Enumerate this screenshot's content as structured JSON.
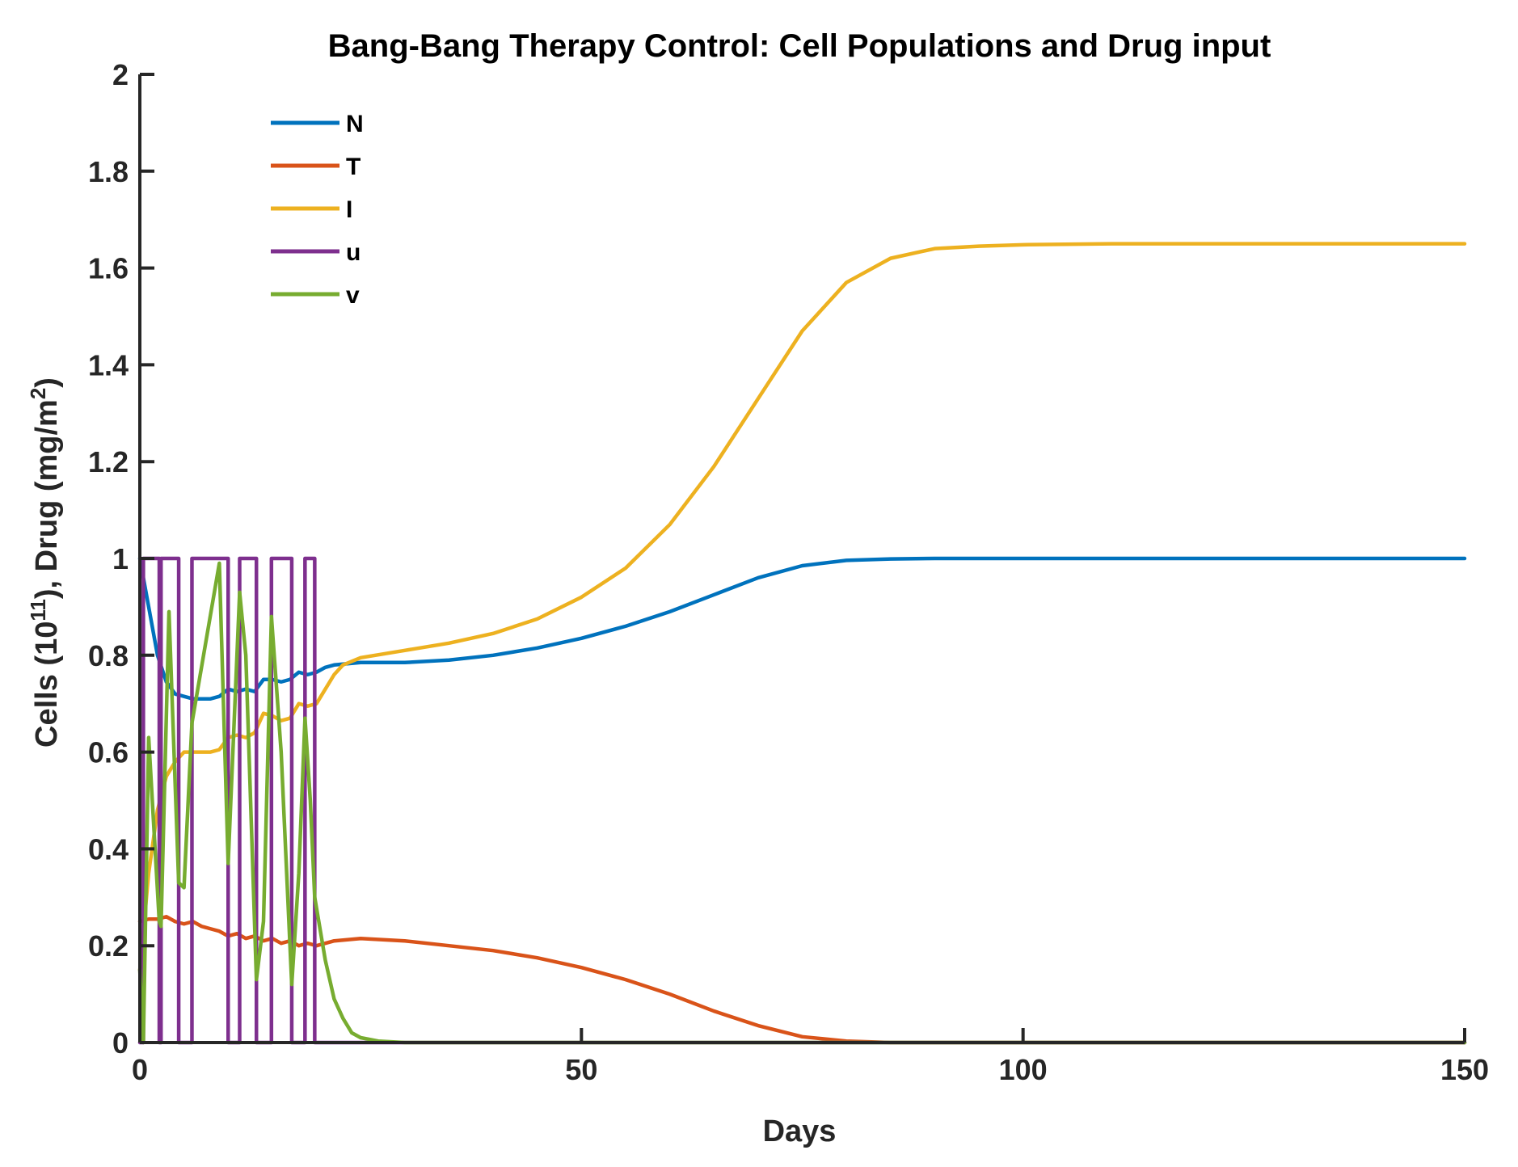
{
  "chart_data": {
    "type": "line",
    "title": "Bang-Bang Therapy Control: Cell Populations and Drug input",
    "xlabel": "Days",
    "ylabel_parts": [
      "Cells (10",
      "11",
      "), Drug (mg/m",
      "2",
      ")"
    ],
    "xlim": [
      0,
      150
    ],
    "ylim": [
      0,
      2
    ],
    "xticks": [
      0,
      50,
      100,
      150
    ],
    "xtick_labels": [
      "0",
      "50",
      "100",
      "150"
    ],
    "yticks": [
      0,
      0.2,
      0.4,
      0.6,
      0.8,
      1,
      1.2,
      1.4,
      1.6,
      1.8,
      2
    ],
    "ytick_labels": [
      "0",
      "0.2",
      "0.4",
      "0.6",
      "0.8",
      "1",
      "1.2",
      "1.4",
      "1.6",
      "1.8",
      "2"
    ],
    "legend_position": "top-left",
    "series": [
      {
        "name": "N",
        "color": "#0072BD",
        "x": [
          0,
          1,
          2,
          3,
          4,
          5,
          6,
          7,
          8,
          9,
          10,
          11,
          12,
          13,
          14,
          15,
          16,
          17,
          18,
          19,
          20,
          21,
          22,
          25,
          30,
          35,
          40,
          45,
          50,
          55,
          60,
          65,
          70,
          75,
          80,
          85,
          90,
          95,
          100,
          110,
          120,
          130,
          140,
          150
        ],
        "y": [
          1.0,
          0.9,
          0.8,
          0.745,
          0.72,
          0.715,
          0.71,
          0.71,
          0.71,
          0.715,
          0.73,
          0.725,
          0.73,
          0.725,
          0.75,
          0.75,
          0.745,
          0.75,
          0.765,
          0.76,
          0.765,
          0.775,
          0.78,
          0.785,
          0.785,
          0.79,
          0.8,
          0.815,
          0.835,
          0.86,
          0.89,
          0.925,
          0.96,
          0.985,
          0.996,
          0.999,
          1.0,
          1.0,
          1.0,
          1.0,
          1.0,
          1.0,
          1.0,
          1.0
        ]
      },
      {
        "name": "T",
        "color": "#D95319",
        "x": [
          0,
          1,
          2,
          3,
          4,
          5,
          6,
          7,
          8,
          9,
          10,
          11,
          12,
          13,
          14,
          15,
          16,
          17,
          18,
          19,
          20,
          21,
          22,
          25,
          30,
          35,
          40,
          45,
          50,
          55,
          60,
          65,
          70,
          75,
          80,
          85,
          90,
          95,
          100,
          110,
          120,
          130,
          140,
          150
        ],
        "y": [
          0.25,
          0.255,
          0.255,
          0.26,
          0.25,
          0.245,
          0.25,
          0.24,
          0.235,
          0.23,
          0.22,
          0.225,
          0.215,
          0.22,
          0.21,
          0.215,
          0.205,
          0.21,
          0.2,
          0.205,
          0.2,
          0.205,
          0.21,
          0.215,
          0.21,
          0.2,
          0.19,
          0.175,
          0.155,
          0.13,
          0.1,
          0.065,
          0.035,
          0.012,
          0.003,
          0.0,
          0.0,
          0.0,
          0.0,
          0.0,
          0.0,
          0.0,
          0.0,
          0.0
        ]
      },
      {
        "name": "I",
        "color": "#EDB120",
        "x": [
          0,
          1,
          2,
          3,
          4,
          5,
          6,
          7,
          8,
          9,
          10,
          11,
          12,
          13,
          14,
          15,
          16,
          17,
          18,
          19,
          20,
          21,
          22,
          23,
          25,
          30,
          35,
          40,
          45,
          50,
          55,
          60,
          65,
          70,
          75,
          80,
          85,
          90,
          95,
          100,
          110,
          120,
          130,
          140,
          150
        ],
        "y": [
          0.15,
          0.35,
          0.48,
          0.55,
          0.58,
          0.6,
          0.6,
          0.6,
          0.6,
          0.605,
          0.63,
          0.635,
          0.63,
          0.64,
          0.68,
          0.675,
          0.665,
          0.67,
          0.7,
          0.695,
          0.7,
          0.73,
          0.76,
          0.78,
          0.795,
          0.81,
          0.825,
          0.845,
          0.875,
          0.92,
          0.98,
          1.07,
          1.19,
          1.33,
          1.47,
          1.57,
          1.62,
          1.64,
          1.645,
          1.648,
          1.65,
          1.65,
          1.65,
          1.65,
          1.65
        ]
      },
      {
        "name": "u",
        "color": "#7E2F8E",
        "x": [
          0,
          0.4,
          0.4,
          2.2,
          2.2,
          2.4,
          2.4,
          4.4,
          4.4,
          5.9,
          5.9,
          10.0,
          10.0,
          11.3,
          11.3,
          13.2,
          13.2,
          14.9,
          14.9,
          17.2,
          17.2,
          18.7,
          18.7,
          19.8,
          19.8,
          150
        ],
        "y": [
          0,
          0,
          1,
          1,
          0,
          0,
          1,
          1,
          0,
          0,
          1,
          1,
          0,
          0,
          1,
          1,
          0,
          0,
          1,
          1,
          0,
          0,
          1,
          1,
          0,
          0
        ]
      },
      {
        "name": "v",
        "color": "#77AC30",
        "x": [
          0,
          0.4,
          1.0,
          2.2,
          2.4,
          3.3,
          4.4,
          5.0,
          5.9,
          9.0,
          10.0,
          11.3,
          12.0,
          13.2,
          14.0,
          14.9,
          16.0,
          17.2,
          18.0,
          18.7,
          19.3,
          19.8,
          21.0,
          22.0,
          23.0,
          24.0,
          25.0,
          27.0,
          30.0,
          150
        ],
        "y": [
          0.15,
          0.0,
          0.63,
          0.25,
          0.24,
          0.89,
          0.33,
          0.32,
          0.66,
          0.99,
          0.37,
          0.93,
          0.8,
          0.13,
          0.25,
          0.88,
          0.6,
          0.12,
          0.35,
          0.67,
          0.5,
          0.3,
          0.17,
          0.09,
          0.05,
          0.02,
          0.01,
          0.003,
          0.0,
          0.0
        ]
      }
    ]
  }
}
